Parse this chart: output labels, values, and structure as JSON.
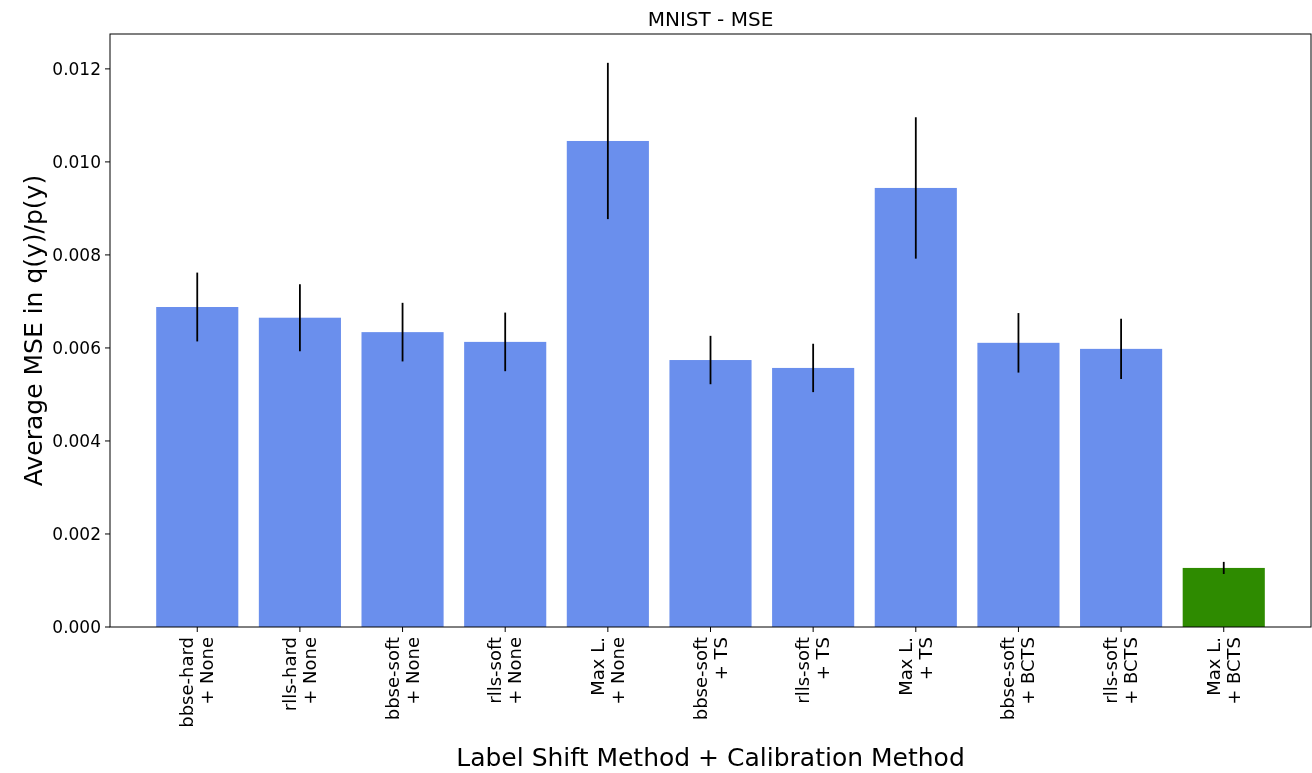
{
  "chart_data": {
    "type": "bar",
    "title": "MNIST - MSE",
    "xlabel": "Label Shift Method + Calibration Method",
    "ylabel": "Average MSE in q(y)/p(y)",
    "categories": [
      "bbse-hard\n+ None",
      "rlls-hard\n+ None",
      "bbse-soft\n+ None",
      "rlls-soft\n+ None",
      "Max L.\n+ None",
      "bbse-soft\n+ TS",
      "rlls-soft\n+ TS",
      "Max L.\n+ TS",
      "bbse-soft\n+ BCTS",
      "rlls-soft\n+ BCTS",
      "Max L.\n+ BCTS"
    ],
    "values": [
      0.00688,
      0.00665,
      0.00634,
      0.00613,
      0.01045,
      0.00574,
      0.00557,
      0.00944,
      0.00611,
      0.00598,
      0.00127
    ],
    "errors": [
      0.00074,
      0.00072,
      0.00063,
      0.00063,
      0.00168,
      0.00052,
      0.00052,
      0.00152,
      0.00064,
      0.00065,
      0.00013
    ],
    "colors": [
      "#6a8fed",
      "#6a8fed",
      "#6a8fed",
      "#6a8fed",
      "#6a8fed",
      "#6a8fed",
      "#6a8fed",
      "#6a8fed",
      "#6a8fed",
      "#6a8fed",
      "#2e8b00"
    ],
    "ylim": [
      0,
      0.01275
    ],
    "yticks": [
      {
        "value": 0,
        "label": "0.000"
      },
      {
        "value": 0.002,
        "label": "0.002"
      },
      {
        "value": 0.004,
        "label": "0.004"
      },
      {
        "value": 0.006,
        "label": "0.006"
      },
      {
        "value": 0.008,
        "label": "0.008"
      },
      {
        "value": 0.01,
        "label": "0.010"
      },
      {
        "value": 0.012,
        "label": "0.012"
      }
    ],
    "grid": false
  }
}
